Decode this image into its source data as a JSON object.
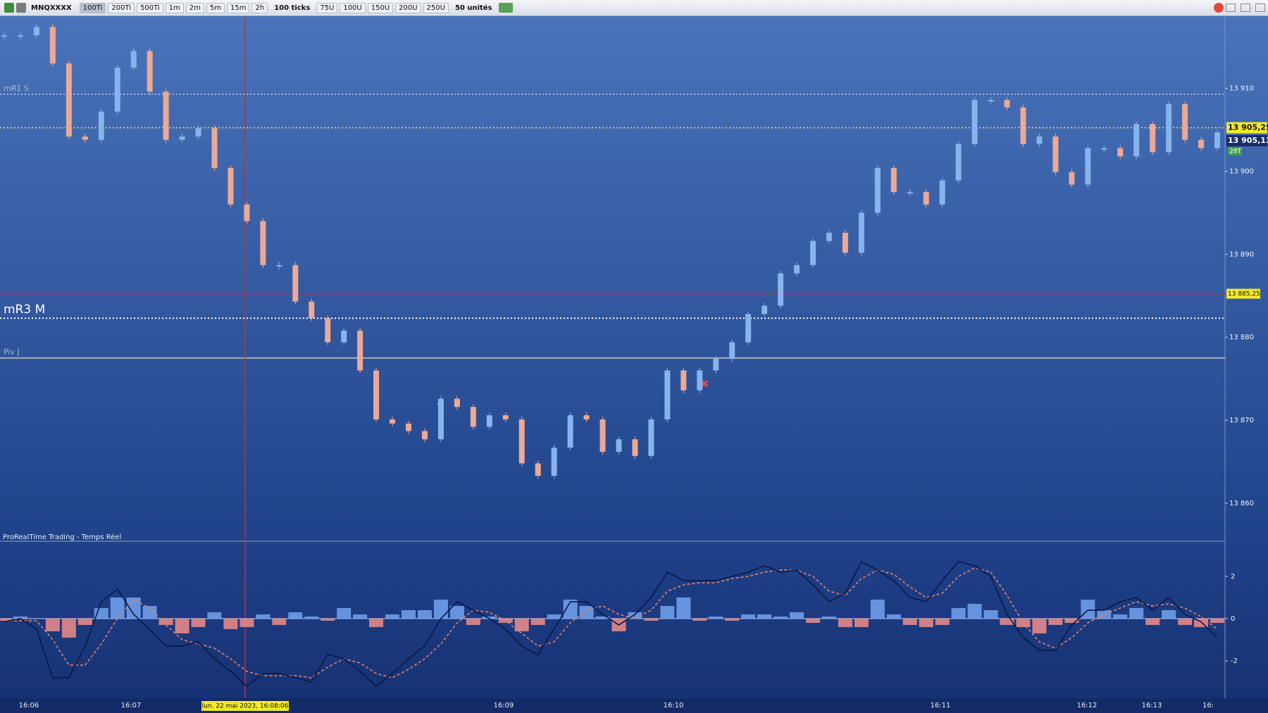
{
  "toolbar": {
    "symbol": "MNQXXXX",
    "buttons": [
      "100Ti",
      "200Ti",
      "500Ti",
      "1m",
      "2m",
      "5m",
      "15m",
      "2h"
    ],
    "ticks": "100 ticks",
    "unit_buttons": [
      "75U",
      "100U",
      "150U",
      "200U",
      "250U"
    ],
    "units": "50 unités"
  },
  "chart_data": [
    {
      "type": "candlestick",
      "values": [
        13916.4,
        13916.4,
        13917.4,
        13913.0,
        13904.2,
        13903.8,
        13907.2,
        13912.5,
        13914.5,
        13909.6,
        13903.8,
        13904.2,
        13905.2,
        13900.4,
        13896.0,
        13894.0,
        13888.7,
        13888.7,
        13884.3,
        13882.3,
        13879.4,
        13880.8,
        13876.0,
        13870.1,
        13869.6,
        13868.7,
        13867.7,
        13872.6,
        13871.6,
        13869.2,
        13870.6,
        13870.1,
        13864.8,
        13863.3,
        13866.7,
        13870.6,
        13870.1,
        13866.2,
        13867.7,
        13865.7,
        13870.1,
        13876.0,
        13873.6,
        13876.0,
        13877.4,
        13879.4,
        13882.8,
        13883.8,
        13887.7,
        13888.7,
        13891.6,
        13892.6,
        13890.2,
        13895.0,
        13900.4,
        13897.5,
        13897.5,
        13896.0,
        13898.9,
        13903.3,
        13908.6,
        13908.6,
        13907.7,
        13903.3,
        13904.2,
        13899.9,
        13898.4,
        13902.8,
        13902.8,
        13901.8,
        13905.7,
        13902.3,
        13908.1,
        13903.8,
        13902.8,
        13904.7
      ],
      "up_color": "#86b4ec",
      "down_color": "#eba996",
      "ylim": [
        13855.5,
        13918.7
      ],
      "yticks": [
        {
          "value": 13860,
          "label": "13 860"
        },
        {
          "value": 13870,
          "label": "13 870"
        },
        {
          "value": 13880,
          "label": "13 880"
        },
        {
          "value": 13890,
          "label": "13 890"
        },
        {
          "value": 13900,
          "label": "13 900"
        },
        {
          "value": 13910,
          "label": "13 910"
        }
      ],
      "x_labels": [
        "16:06",
        "16:07",
        "16:09",
        "16:10",
        "16:11",
        "16:12",
        "16:13",
        "16:"
      ],
      "levels": [
        {
          "name": "mR1 S",
          "value": 13909.3,
          "color": "#c5d1ec"
        },
        {
          "name": "mR3 M",
          "value": 13882.3,
          "color": "#ffffff"
        },
        {
          "name": "Piv J",
          "value": 13877.5,
          "color": "#c8c8c8"
        }
      ],
      "last_price": {
        "value": 13905.25,
        "label": "13 905,25"
      },
      "bid": {
        "value": 13905.13,
        "label": "13 905,13"
      },
      "tick_count": "28T",
      "crosshair": {
        "value": 13885.25,
        "label": "13 885,25",
        "time": "lun. 22 mai 2023, 16:08:06"
      },
      "source": "ProRealTime Trading - Temps Réel"
    },
    {
      "type": "macd",
      "histogram": [
        -0.1,
        0.1,
        0.0,
        -0.6,
        -0.9,
        -0.3,
        0.5,
        1.0,
        1.0,
        0.6,
        -0.3,
        -0.7,
        -0.4,
        0.3,
        -0.5,
        -0.4,
        0.2,
        -0.3,
        0.3,
        0.1,
        -0.1,
        0.5,
        0.2,
        -0.4,
        0.2,
        0.4,
        0.4,
        0.9,
        0.6,
        -0.3,
        0.1,
        -0.2,
        -0.6,
        -0.3,
        0.2,
        0.9,
        0.6,
        0.1,
        -0.6,
        0.3,
        -0.1,
        0.6,
        1.0,
        -0.1,
        0.1,
        -0.1,
        0.2,
        0.2,
        0.1,
        0.3,
        -0.2,
        0.1,
        -0.4,
        -0.4,
        0.9,
        0.2,
        -0.3,
        -0.4,
        -0.3,
        0.5,
        0.7,
        0.4,
        -0.3,
        -0.4,
        -0.7,
        -0.3,
        -0.2,
        0.9,
        0.4,
        0.2,
        0.5,
        -0.3,
        0.4,
        -0.3,
        -0.4,
        -0.2
      ],
      "macd": [
        -0.15,
        0,
        -0.5,
        -2.8,
        -2.8,
        -1.3,
        0.8,
        1.4,
        0.2,
        -0.5,
        -1.3,
        -1.3,
        -1.1,
        -1.9,
        -2.5,
        -3.2,
        -2.6,
        -2.6,
        -2.8,
        -3.0,
        -1.7,
        -1.9,
        -2.5,
        -3.2,
        -2.6,
        -1.9,
        -1.3,
        0,
        0.8,
        0.4,
        0,
        -0.5,
        -1.3,
        -1.7,
        -0.5,
        0.8,
        0.8,
        0.2,
        -0.3,
        0.2,
        1.0,
        2.2,
        1.8,
        1.8,
        1.8,
        2.0,
        2.2,
        2.5,
        2.2,
        2.3,
        1.6,
        0.8,
        1.2,
        2.7,
        2.3,
        1.8,
        1.0,
        0.8,
        1.8,
        2.7,
        2.5,
        2.0,
        0.2,
        -0.9,
        -1.5,
        -1.5,
        -0.3,
        0.4,
        0.4,
        0.8,
        1.0,
        0.4,
        1.0,
        0.2,
        -0.15,
        -0.9
      ],
      "signal": [
        -0.1,
        -0.1,
        -0.1,
        -1.0,
        -2.2,
        -2.2,
        -1.2,
        0.0,
        0.9,
        0.5,
        -0.3,
        -1.0,
        -1.2,
        -1.4,
        -1.9,
        -2.5,
        -2.7,
        -2.7,
        -2.7,
        -2.8,
        -2.3,
        -1.9,
        -2.1,
        -2.6,
        -2.8,
        -2.4,
        -1.9,
        -1.2,
        -0.2,
        0.4,
        0.3,
        -0.1,
        -0.7,
        -1.3,
        -1.1,
        -0.2,
        0.4,
        0.6,
        0.2,
        0.0,
        0.4,
        1.3,
        1.6,
        1.7,
        1.7,
        1.9,
        2.0,
        2.2,
        2.3,
        2.3,
        2.0,
        1.3,
        1.1,
        1.9,
        2.3,
        2.1,
        1.5,
        1.0,
        1.2,
        2.0,
        2.4,
        2.2,
        1.1,
        -0.2,
        -1.1,
        -1.4,
        -0.9,
        -0.2,
        0.2,
        0.5,
        0.8,
        0.6,
        0.7,
        0.5,
        0.1,
        -0.5
      ],
      "up_color": "#6f9de9",
      "down_color": "#e58a86",
      "macd_color": "#0a1848",
      "signal_color": "#e37f6c",
      "ylim": [
        -3.77,
        3.63
      ],
      "yticks": [
        2,
        0,
        -2
      ]
    }
  ]
}
